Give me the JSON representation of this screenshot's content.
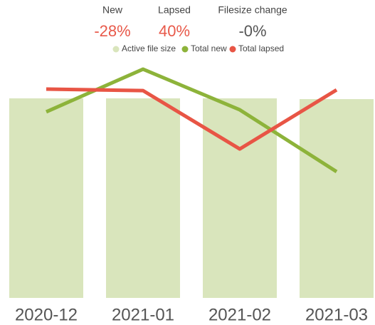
{
  "chart_data": {
    "type": "bar_line",
    "kpis": {
      "labels": [
        "New",
        "Lapsed",
        "Filesize change"
      ],
      "values": [
        -28,
        40,
        0
      ],
      "value_labels": [
        "-28%",
        "40%",
        "-0%"
      ],
      "colors": [
        "#e8594a",
        "#e8594a",
        "#555555"
      ]
    },
    "categories": [
      "2020-12",
      "2021-01",
      "2021-02",
      "2021-03"
    ],
    "ylim": [
      0,
      100
    ],
    "series": [
      {
        "name": "Active file size",
        "kind": "bar",
        "color": "#d9e5bc",
        "values": [
          80,
          80,
          80,
          79.7
        ]
      },
      {
        "name": "Total new",
        "kind": "line",
        "color": "#8db33a",
        "values": [
          74.6,
          91.7,
          75.4,
          50.6
        ]
      },
      {
        "name": "Total lapsed",
        "kind": "line",
        "color": "#e85545",
        "values": [
          83.7,
          83.1,
          59.7,
          83.4
        ]
      }
    ]
  }
}
